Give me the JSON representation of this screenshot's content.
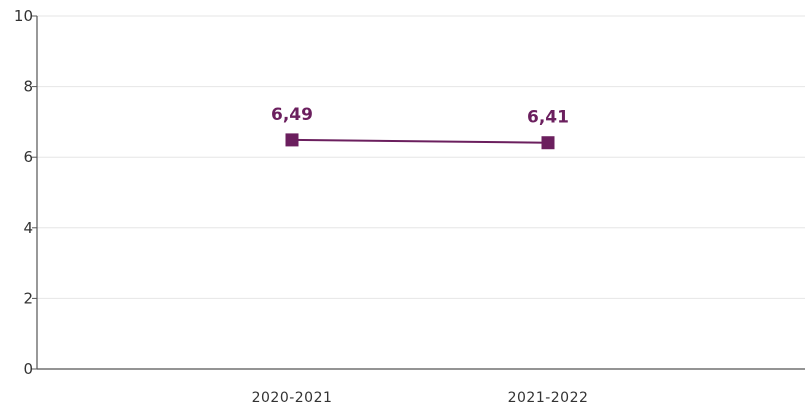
{
  "chart_data": {
    "type": "line",
    "categories": [
      "2020-2021",
      "2021-2022"
    ],
    "series": [
      {
        "values": [
          6.49,
          6.41
        ],
        "labels": [
          "6,49",
          "6,41"
        ]
      }
    ],
    "yticks": [
      "0",
      "2",
      "4",
      "6",
      "8",
      "10"
    ],
    "ylim": [
      0,
      10
    ],
    "grid": true,
    "colors": {
      "series": "#6b1f5e",
      "grid": "#e6e6e6",
      "axis": "#555555"
    }
  }
}
